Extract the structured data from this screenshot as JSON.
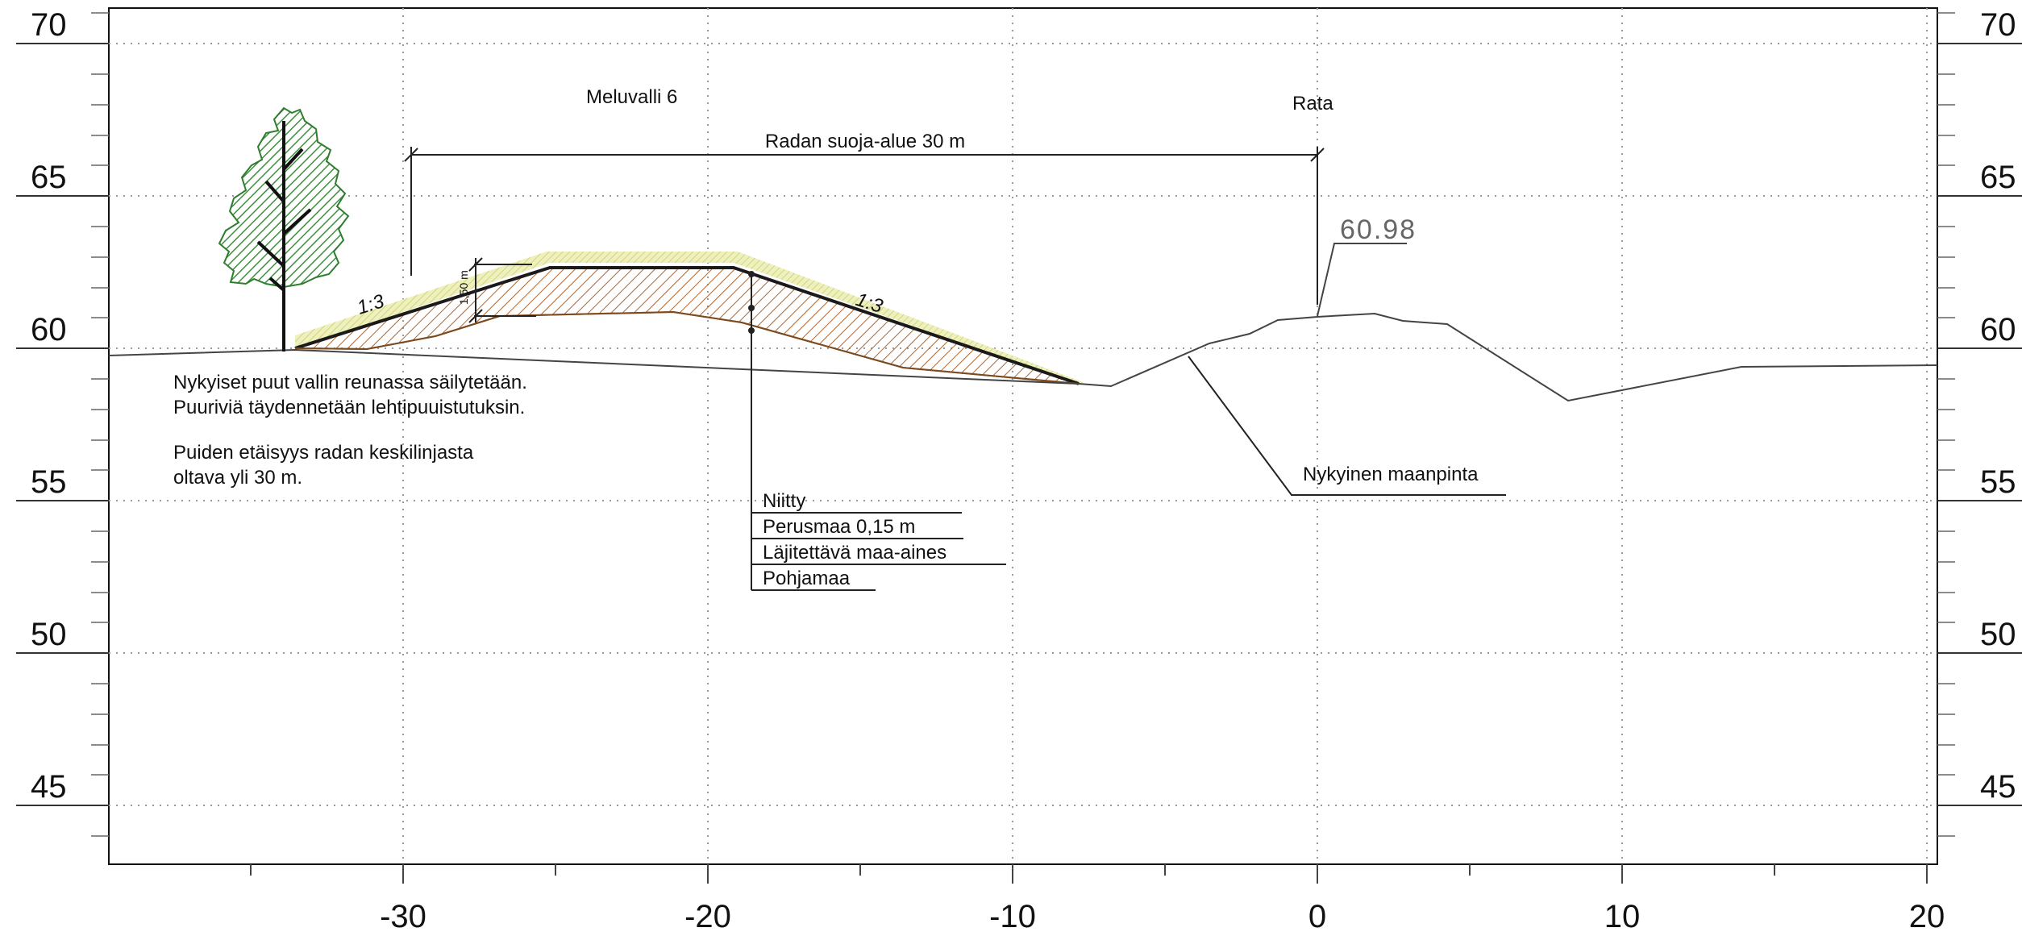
{
  "axes": {
    "elevations": [
      "70",
      "65",
      "60",
      "55",
      "50",
      "45"
    ],
    "stations": [
      "-30",
      "-20",
      "-10",
      "0",
      "10",
      "20"
    ]
  },
  "labels": {
    "structure_name": "Meluvalli 6",
    "rail": "Rata",
    "protection_zone": "Radan suoja-alue 30 m",
    "elevation_value": "60.98",
    "slope_left": "1:3",
    "slope_right": "1:3",
    "topsoil_thickness": "1,50 m",
    "existing_ground": "Nykyinen maanpinta"
  },
  "notes": {
    "line1": "Nykyiset puut vallin reunassa säilytetään.",
    "line2": "Puuriviä täydennetään lehtipuuistutuksin.",
    "line3": "Puiden etäisyys radan keskilinjasta",
    "line4": "oltava yli 30 m."
  },
  "layers": [
    "Niitty",
    "Perusmaa 0,15 m",
    "Läjitettävä maa-aines",
    "Pohjamaa"
  ],
  "colors": {
    "meadow": "#e4e6a4",
    "fill_hatch": "#b2662f",
    "tree": "#3f8f3f",
    "line": "#1a1a1a"
  }
}
